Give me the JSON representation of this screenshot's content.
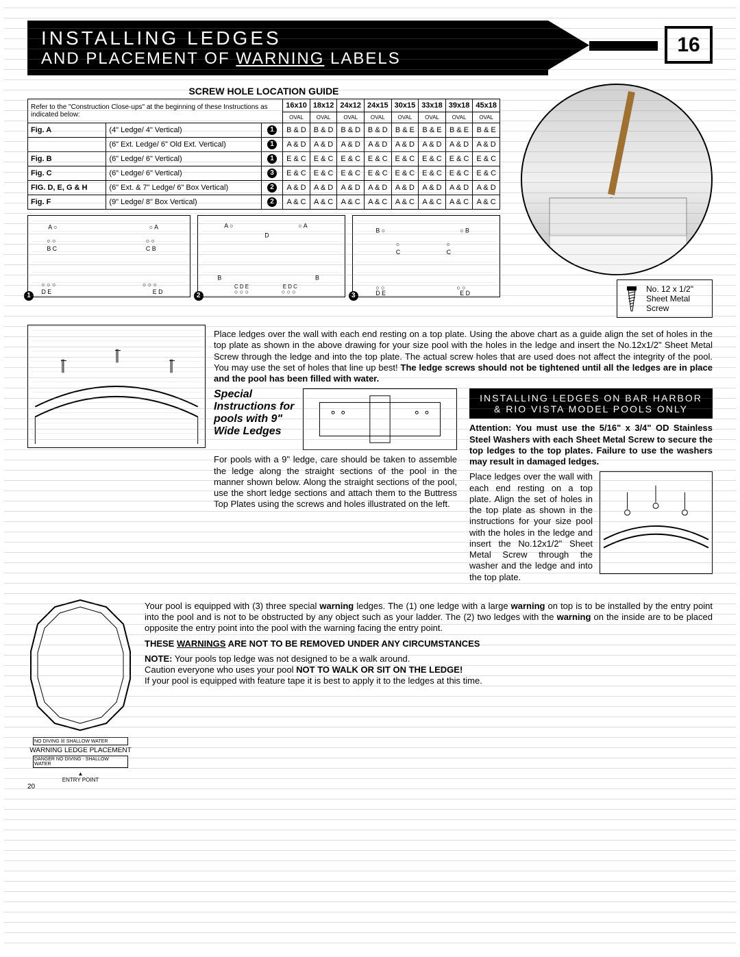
{
  "header": {
    "title1": "INSTALLING LEDGES",
    "title2_a": "AND PLACEMENT OF ",
    "title2_u": "WARNING",
    "title2_b": " LABELS",
    "page_num": "16"
  },
  "table": {
    "title": "SCREW HOLE LOCATION GUIDE",
    "intro": "Refer to the \"Construction Close-ups\" at the beginning of these Instructions as indicated below:",
    "sizes": [
      "16x10",
      "18x12",
      "24x12",
      "24x15",
      "30x15",
      "33x18",
      "39x18",
      "45x18"
    ],
    "oval": "OVAL",
    "rows": [
      {
        "fig": "Fig. A",
        "desc": "(4\" Ledge/ 4\" Vertical)",
        "n": "1",
        "cells": [
          "B & D",
          "B & D",
          "B & D",
          "B & D",
          "B & E",
          "B & E",
          "B & E",
          "B & E"
        ]
      },
      {
        "fig": "",
        "desc": "(6\" Ext. Ledge/ 6\" Old Ext. Vertical)",
        "n": "1",
        "cells": [
          "A & D",
          "A & D",
          "A & D",
          "A & D",
          "A & D",
          "A & D",
          "A & D",
          "A & D"
        ]
      },
      {
        "fig": "Fig. B",
        "desc": "(6\" Ledge/ 6\" Vertical)",
        "n": "1",
        "cells": [
          "E & C",
          "E & C",
          "E & C",
          "E & C",
          "E & C",
          "E & C",
          "E & C",
          "E & C"
        ]
      },
      {
        "fig": "Fig. C",
        "desc": "(6\" Ledge/ 6\" Vertical)",
        "n": "3",
        "cells": [
          "E & C",
          "E & C",
          "E & C",
          "E & C",
          "E & C",
          "E & C",
          "E & C",
          "E & C"
        ]
      },
      {
        "fig": "FIG. D, E, G & H",
        "desc": "(6\" Ext. & 7\" Ledge/ 6\" Box Vertical)",
        "n": "2",
        "cells": [
          "A & D",
          "A & D",
          "A & D",
          "A & D",
          "A & D",
          "A & D",
          "A & D",
          "A & D"
        ]
      },
      {
        "fig": "Fig. F",
        "desc": "(9\" Ledge/ 8\" Box Vertical)",
        "n": "2",
        "cells": [
          "A & C",
          "A & C",
          "A & C",
          "A & C",
          "A & C",
          "A & C",
          "A & C",
          "A & C"
        ]
      }
    ]
  },
  "diagram_letters": {
    "d1": "A    A\nB C    C B\n\nD E    E D",
    "d2": "A    A\nD\n\nB        B\nC D E    E D C",
    "d3": "B        B\nC    C\n\nD E        E D"
  },
  "screw_note": {
    "l1": "No. 12 x 1/2\"",
    "l2": "Sheet Metal",
    "l3": "Screw"
  },
  "para1": "Place ledges over the wall with each end resting on a top plate. Using the above chart as a guide align the set of holes in the top plate as shown in the above drawing for your size pool with the holes in the ledge and insert the No.12x1/2\" Sheet Metal Screw through the ledge and into the top plate. The actual screw holes that are used does not affect the integrity of the pool. You may use the set of holes that line up best! ",
  "para1_bold": "The ledge screws should not be tightened  until all the ledges are in place and the pool has been filled with water.",
  "subhead": {
    "l1": "INSTALLING LEDGES ON BAR HARBOR",
    "l2": "& RIO VISTA MODEL POOLS ONLY"
  },
  "special_head": "Special Instructions for pools with 9\" Wide Ledges",
  "special_para": "For pools with a 9\" ledge, care should be taken to assemble the ledge along the straight sections of the pool in the manner shown below.  Along the straight sections of the pool, use the short ledge sections and attach them to the Buttress Top Plates using the screws and holes illustrated on the left.",
  "attention": "Attention: You must use the 5/16\" x 3/4\" OD Stainless Steel Washers with each Sheet Metal Screw to secure the top ledges to the top plates. Failure to use the washers may result in damaged ledges.",
  "right_para": "Place ledges over the wall with each end resting on a top plate. Align the set of holes in the top plate as shown in the instructions for your size pool with the holes in the ledge and insert the No.12x1/2\" Sheet Metal Screw through the washer and the ledge and into the top plate.",
  "bottom": {
    "diag_labels": {
      "a": "NO DIVING ☒ SHALLOW WATER",
      "b": "WARNING LEDGE PLACEMENT",
      "c": "DANGER NO DIVING · SHALLOW WATER",
      "entry": "ENTRY POINT"
    },
    "p1a": "Your pool is equipped with (3) three special ",
    "w1": "warning",
    "p1b": " ledges.  The (1) one ledge with a large ",
    "w2": "warning",
    "p1c": " on top is to be installed by the entry point into the pool and is not to be obstructed by any object such as your ladder. The (2) two ledges with the ",
    "w3": "warning",
    "p1d": " on the inside are to be placed opposite the entry point into the pool with the warning facing the entry point.",
    "line2a": "THESE ",
    "line2u": "WARNINGS",
    "line2b": " ARE NOT TO BE REMOVED UNDER ANY CIRCUMSTANCES",
    "note_lbl": "NOTE:",
    "note_body": " Your pools top ledge was not designed to be a walk around.",
    "caution_a": "Caution everyone who uses your pool ",
    "caution_b": "NOT TO WALK OR SIT ON THE LEDGE!",
    "last": "If your pool is equipped with feature tape it is best to apply it to the ledges at this time."
  },
  "page_footer": "20"
}
